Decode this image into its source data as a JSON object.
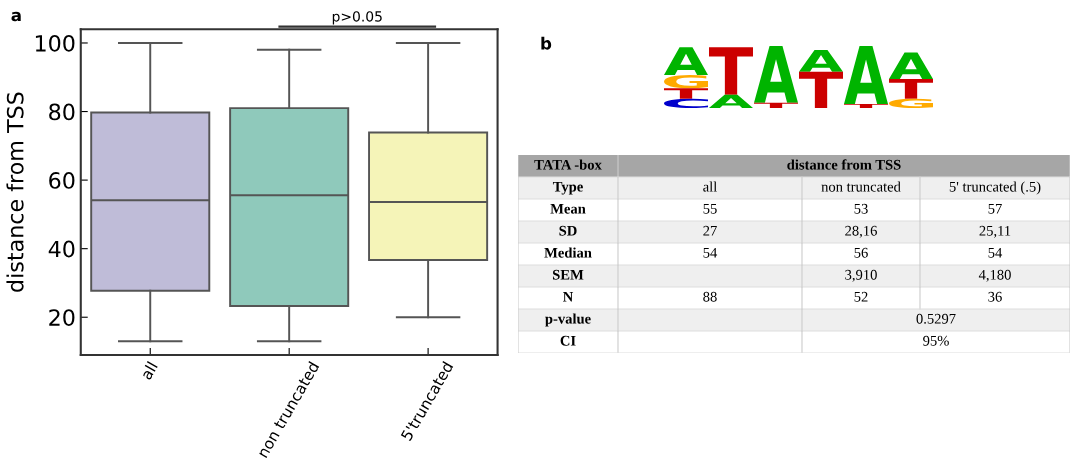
{
  "chart_data": [
    {
      "type": "box",
      "ylabel": "distance from TSS",
      "categories": [
        "all",
        "non truncated",
        "5'truncated"
      ],
      "colors": [
        "#bfbcd8",
        "#8fc9bb",
        "#f5f4b8"
      ],
      "boxes": [
        {
          "low": 13,
          "q1": 27.7,
          "median": 54.1,
          "q3": 79.7,
          "high": 100
        },
        {
          "low": 13,
          "q1": 23.3,
          "median": 55.6,
          "q3": 81,
          "high": 98
        },
        {
          "low": 20,
          "q1": 36.7,
          "median": 53.6,
          "q3": 73.9,
          "high": 100
        }
      ],
      "ylim": [
        9,
        104
      ],
      "yticks": [
        20,
        40,
        60,
        80,
        100
      ],
      "grid": false,
      "annotations": [
        "a",
        "p>0.05"
      ]
    },
    {
      "type": "other",
      "annotations": [
        "b"
      ],
      "cell_labels": [
        [
          "TATA -box",
          "distance from TSS",
          null,
          null
        ],
        [
          "Type",
          "all",
          "non truncated",
          "5' truncated (.5)"
        ],
        [
          "Mean",
          "55",
          "53",
          "57"
        ],
        [
          "SD",
          "27",
          "28,16",
          "25,11"
        ],
        [
          "Median",
          "54",
          "56",
          "54"
        ],
        [
          "SEM",
          null,
          "3,910",
          "4,180"
        ],
        [
          "N",
          "88",
          "52",
          "36"
        ],
        [
          "p-value",
          null,
          "0.5297",
          null
        ],
        [
          "CI",
          null,
          "95%",
          null
        ]
      ]
    }
  ]
}
